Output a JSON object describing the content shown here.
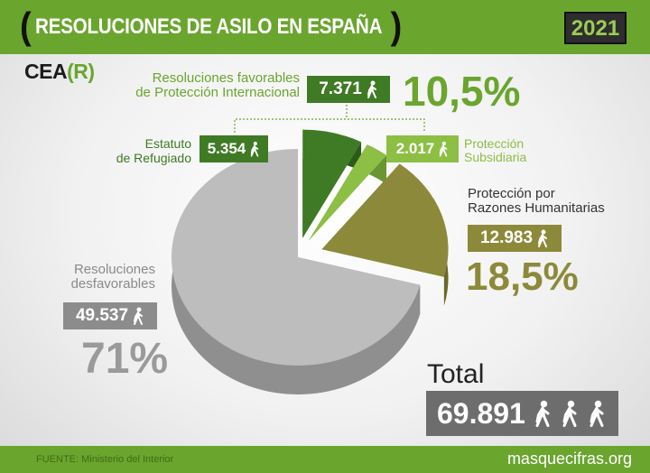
{
  "header": {
    "title": "RESOLUCIONES DE ASILO EN ESPAÑA",
    "year": "2021",
    "logo_left": "CEA",
    "logo_r": "(R)"
  },
  "footer": {
    "source": "FUENTE: Ministerio del Interior",
    "site": "masquecifras.org"
  },
  "labels": {
    "favorable_l1": "Resoluciones favorables",
    "favorable_l2": "de Protección Internacional",
    "favorable_value": "7.371",
    "favorable_pct": "10,5%",
    "refugee_l1": "Estatuto",
    "refugee_l2": "de Refugiado",
    "refugee_value": "5.354",
    "subsidiary_l1": "Protección",
    "subsidiary_l2": "Subsidiaria",
    "subsidiary_value": "2.017",
    "humanitarian_l1": "Protección por",
    "humanitarian_l2": "Razones Humanitarias",
    "humanitarian_value": "12.983",
    "humanitarian_pct": "18,5%",
    "unfavorable_l1": "Resoluciones",
    "unfavorable_l2": "desfavorables",
    "unfavorable_value": "49.537",
    "unfavorable_pct": "71%",
    "total_label": "Total",
    "total_value": "69.891"
  },
  "colors": {
    "brand_green": "#6aa52e",
    "refugee": "#3f7a25",
    "subsidiary": "#8cbf44",
    "humanitarian": "#8c8a3a",
    "unfavorable": "#bdbdbd"
  },
  "chart_data": {
    "type": "pie",
    "title": "RESOLUCIONES DE ASILO EN ESPAÑA",
    "series": [
      {
        "name": "Resoluciones desfavorables",
        "value": 49537,
        "percent": 71
      },
      {
        "name": "Estatuto de Refugiado",
        "value": 5354
      },
      {
        "name": "Protección Subsidiaria",
        "value": 2017
      },
      {
        "name": "Protección por Razones Humanitarias",
        "value": 12983,
        "percent": 18.5
      }
    ],
    "total": 69891
  }
}
